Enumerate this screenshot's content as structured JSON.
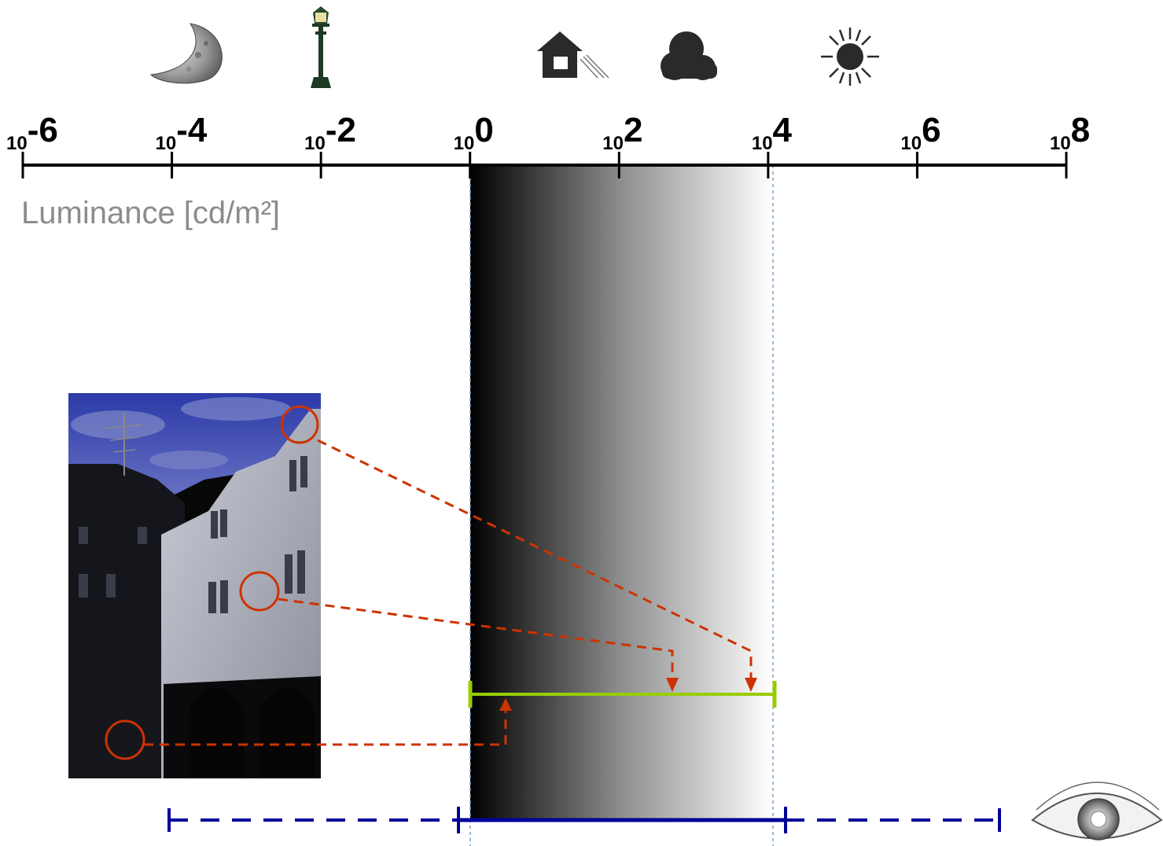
{
  "axis": {
    "title": "Luminance [cd/m²]",
    "base": "10",
    "exponents": [
      "-6",
      "-4",
      "-2",
      "0",
      "2",
      "4",
      "6",
      "8"
    ]
  },
  "icons": [
    "moon-icon",
    "street-lamp-icon",
    "indoor-house-icon",
    "cloud-icon",
    "sun-icon",
    "eye-icon"
  ],
  "colors": {
    "axis": "#000000",
    "display_range": "#99cc00",
    "mapping_lines": "#cc3300",
    "eye_range": "#000099",
    "guide_lines": "#7aa0c8"
  }
}
